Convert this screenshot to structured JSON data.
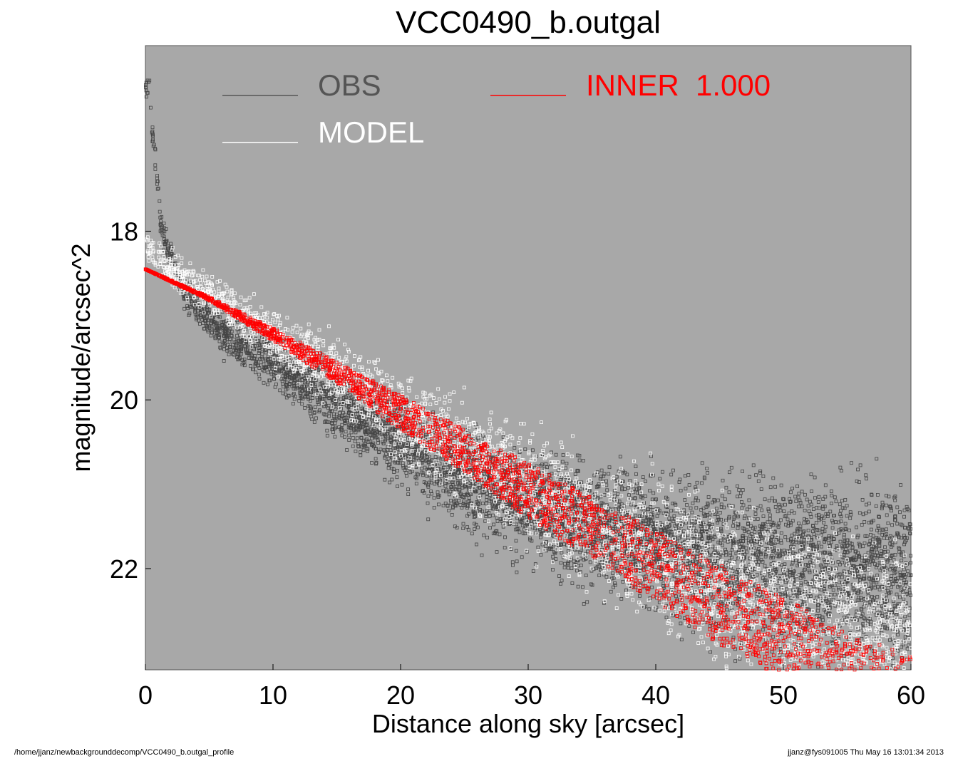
{
  "chart_data": {
    "type": "scatter",
    "title": "VCC0490_b.outgal",
    "xlabel": "Distance along sky [arcsec]",
    "ylabel": "magnitude/arcsec^2",
    "xlim": [
      0,
      60
    ],
    "ylim": [
      23.2,
      15.8
    ],
    "x_inverted": false,
    "y_inverted": true,
    "x_ticks": [
      0,
      10,
      20,
      30,
      40,
      50,
      60
    ],
    "y_ticks": [
      18,
      20,
      22
    ],
    "background_color": "#a8a8a8",
    "grid": false,
    "legend_position": "top",
    "legend": [
      {
        "label": "OBS",
        "color": "#555555"
      },
      {
        "label": "INNER  1.000",
        "color": "#ff0000"
      },
      {
        "label": "MODEL",
        "color": "#ffffff"
      }
    ],
    "series": [
      {
        "name": "OBS",
        "color": "#444444",
        "marker": "open-square",
        "x": [
          0.3,
          0.5,
          0.8,
          1.0,
          1.2,
          1.5,
          2.0,
          2.5,
          3.0,
          4.0,
          5.0,
          6.0,
          7.0,
          8.0,
          9.0,
          10,
          11,
          12,
          13,
          14,
          15,
          16,
          17,
          18,
          19,
          20,
          22,
          24,
          26,
          28,
          30,
          32,
          34,
          36,
          38,
          40,
          42,
          44,
          46,
          48,
          50,
          52,
          54,
          56,
          58,
          60
        ],
        "y": [
          16.3,
          16.8,
          17.2,
          17.6,
          17.9,
          18.1,
          18.3,
          18.5,
          18.7,
          18.9,
          19.05,
          19.2,
          19.3,
          19.4,
          19.5,
          19.55,
          19.65,
          19.75,
          19.85,
          19.95,
          20.05,
          20.15,
          20.25,
          20.35,
          20.45,
          20.5,
          20.7,
          20.9,
          21.0,
          21.15,
          21.25,
          21.35,
          21.45,
          21.55,
          21.6,
          21.7,
          21.75,
          21.8,
          21.85,
          21.9,
          21.95,
          21.95,
          22.0,
          22.0,
          22.05,
          22.05
        ]
      },
      {
        "name": "MODEL",
        "color": "#ffffff",
        "marker": "open-square",
        "x": [
          0.3,
          1,
          2,
          3,
          5,
          7,
          10,
          12,
          15,
          18,
          20,
          25,
          30,
          35,
          40,
          45,
          50,
          55,
          60
        ],
        "y": [
          18.45,
          18.55,
          18.7,
          18.8,
          19.0,
          19.2,
          19.5,
          19.7,
          19.95,
          20.25,
          20.45,
          20.9,
          21.3,
          21.7,
          22.1,
          22.45,
          22.75,
          23.0,
          23.2
        ]
      },
      {
        "name": "INNER  1.000",
        "color": "#ff0000",
        "marker": "open-square",
        "x": [
          0,
          5,
          10,
          15,
          20,
          25,
          30,
          35,
          40,
          45,
          50,
          55,
          60
        ],
        "y_upper": [
          18.45,
          18.78,
          19.15,
          19.55,
          19.95,
          20.35,
          20.75,
          21.15,
          21.55,
          21.95,
          22.35,
          22.75,
          23.05
        ],
        "y_lower": [
          18.45,
          18.82,
          19.3,
          19.8,
          20.35,
          20.85,
          21.4,
          21.9,
          22.4,
          22.9,
          23.3,
          23.6,
          23.9
        ]
      }
    ]
  },
  "footer": {
    "left": "/home/jjanz/newbackgrounddecomp/VCC0490_b.outgal_profile",
    "right": "jjanz@fys091005  Thu May 16 13:01:34 2013"
  }
}
